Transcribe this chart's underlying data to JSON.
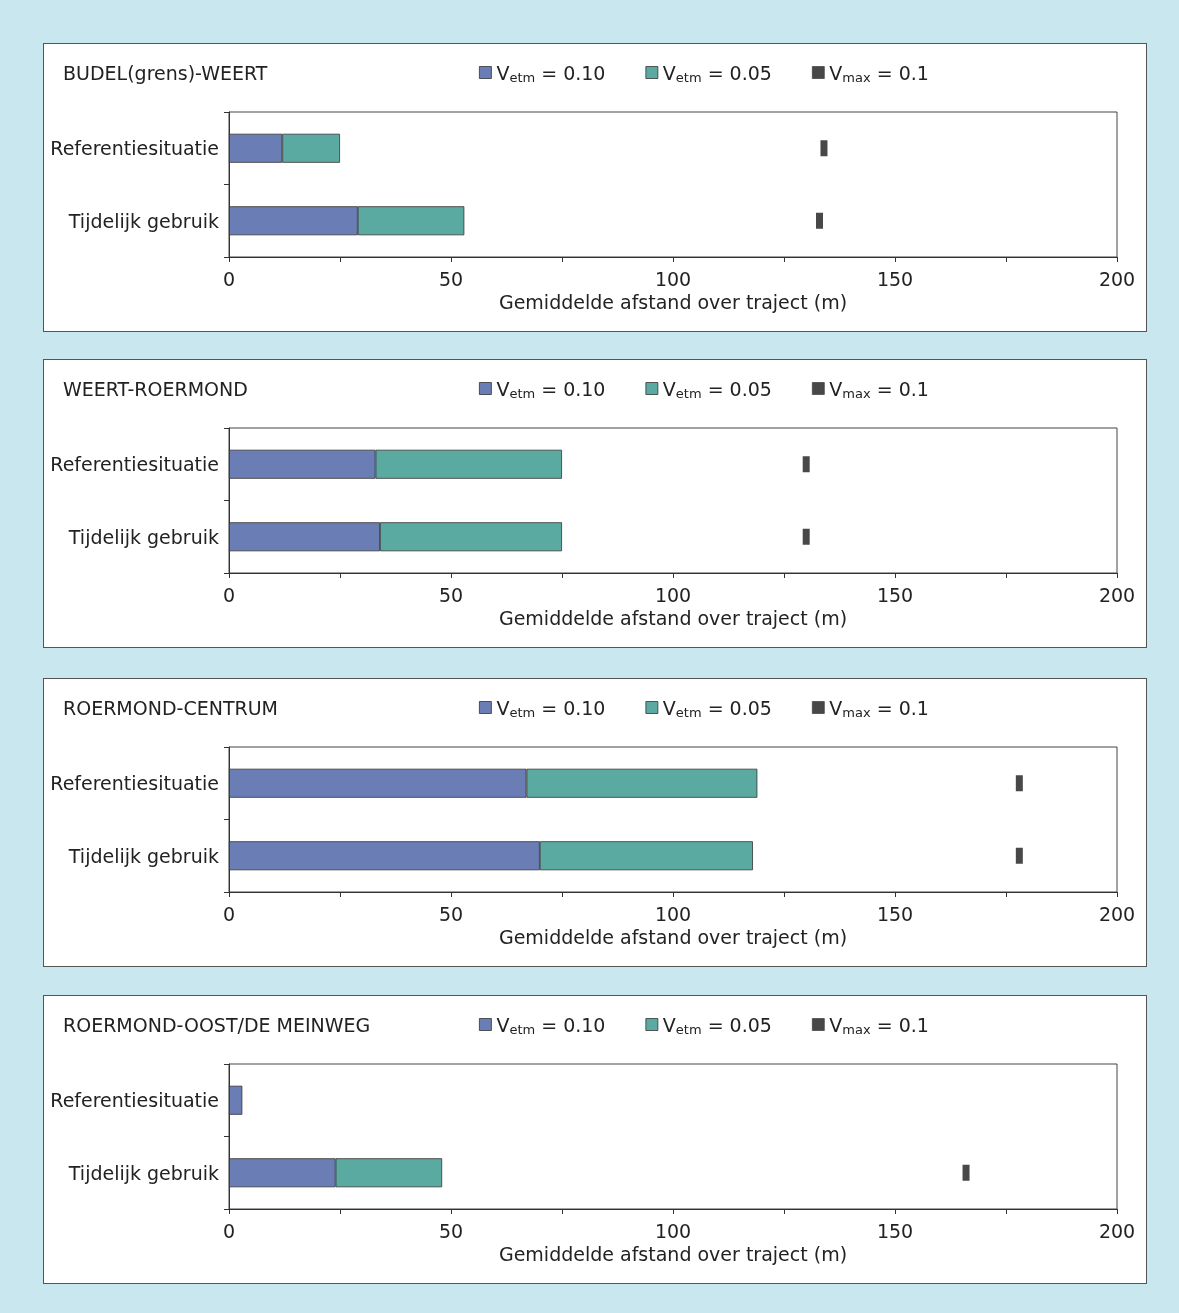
{
  "chart_data": [
    {
      "type": "bar",
      "orientation": "horizontal",
      "stacked": true,
      "title": "BUDEL(grens)-WEERT",
      "xlabel": "Gemiddelde afstand over traject (m)",
      "categories": [
        "Referentiesituatie",
        "Tijdelijk gebruik"
      ],
      "series": [
        {
          "name": "V$_{etm}$ = 0.10",
          "color": "#6b7db5",
          "values": [
            12,
            29
          ]
        },
        {
          "name": "V$_{etm}$ = 0.05",
          "color": "#5aaaa2",
          "values": [
            13,
            24
          ]
        },
        {
          "name": "V$_{max}$ = 0.1",
          "type": "scatter",
          "color": "#1a1a1a",
          "values": [
            134,
            133
          ]
        }
      ],
      "xlim": [
        0,
        200
      ],
      "xticks": [
        0,
        {
          "value": 25,
          "label": null
        },
        50,
        {
          "value": 75,
          "label": null
        },
        100,
        {
          "value": 125,
          "label": null
        },
        150,
        {
          "value": 175,
          "label": null
        },
        200
      ],
      "marker": "square",
      "grid": false,
      "legend": "top"
    },
    {
      "type": "bar",
      "orientation": "horizontal",
      "stacked": true,
      "title": "WEERT-ROERMOND",
      "xlabel": "Gemiddelde afstand over traject (m)",
      "categories": [
        "Referentiesituatie",
        "Tijdelijk gebruik"
      ],
      "series": [
        {
          "name": "V$_{etm}$ = 0.10",
          "color": "#6b7db5",
          "values": [
            33,
            34
          ]
        },
        {
          "name": "V$_{etm}$ = 0.05",
          "color": "#5aaaa2",
          "values": [
            42,
            41
          ]
        },
        {
          "name": "V$_{max}$ = 0.1",
          "type": "scatter",
          "color": "#1a1a1a",
          "values": [
            130,
            130
          ]
        }
      ],
      "xlim": [
        0,
        200
      ],
      "xticks": [
        0,
        {
          "value": 25,
          "label": null
        },
        50,
        {
          "value": 75,
          "label": null
        },
        100,
        {
          "value": 125,
          "label": null
        },
        150,
        {
          "value": 175,
          "label": null
        },
        200
      ],
      "marker": "square",
      "grid": false,
      "legend": "top"
    },
    {
      "type": "bar",
      "orientation": "horizontal",
      "stacked": true,
      "title": "ROERMOND-CENTRUM",
      "xlabel": "Gemiddelde afstand over traject (m)",
      "categories": [
        "Referentiesituatie",
        "Tijdelijk gebruik"
      ],
      "series": [
        {
          "name": "V$_{etm}$ = 0.10",
          "color": "#6b7db5",
          "values": [
            67,
            70
          ]
        },
        {
          "name": "V$_{etm}$ = 0.05",
          "color": "#5aaaa2",
          "values": [
            52,
            48
          ]
        },
        {
          "name": "V$_{max}$ = 0.1",
          "type": "scatter",
          "color": "#1a1a1a",
          "values": [
            178,
            178
          ]
        }
      ],
      "xlim": [
        0,
        200
      ],
      "xticks": [
        0,
        {
          "value": 25,
          "label": null
        },
        50,
        {
          "value": 75,
          "label": null
        },
        100,
        {
          "value": 125,
          "label": null
        },
        150,
        {
          "value": 175,
          "label": null
        },
        200
      ],
      "marker": "square",
      "grid": false,
      "legend": "top"
    },
    {
      "type": "bar",
      "orientation": "horizontal",
      "stacked": true,
      "title": "ROERMOND-OOST/DE MEINWEG",
      "xlabel": "Gemiddelde afstand over traject (m)",
      "categories": [
        "Referentiesituatie",
        "Tijdelijk gebruik"
      ],
      "series": [
        {
          "name": "V$_{etm}$ = 0.10",
          "color": "#6b7db5",
          "values": [
            3,
            24
          ]
        },
        {
          "name": "V$_{etm}$ = 0.05",
          "color": "#5aaaa2",
          "values": [
            null,
            24
          ]
        },
        {
          "name": "V$_{max}$ = 0.1",
          "type": "scatter",
          "color": "#1a1a1a",
          "values": [
            null,
            166
          ]
        }
      ],
      "xlim": [
        0,
        200
      ],
      "xticks": [
        0,
        {
          "value": 25,
          "label": null
        },
        50,
        {
          "value": 75,
          "label": null
        },
        100,
        {
          "value": 125,
          "label": null
        },
        150,
        {
          "value": 175,
          "label": null
        },
        200
      ],
      "marker": "square",
      "grid": false,
      "legend": "top"
    }
  ]
}
